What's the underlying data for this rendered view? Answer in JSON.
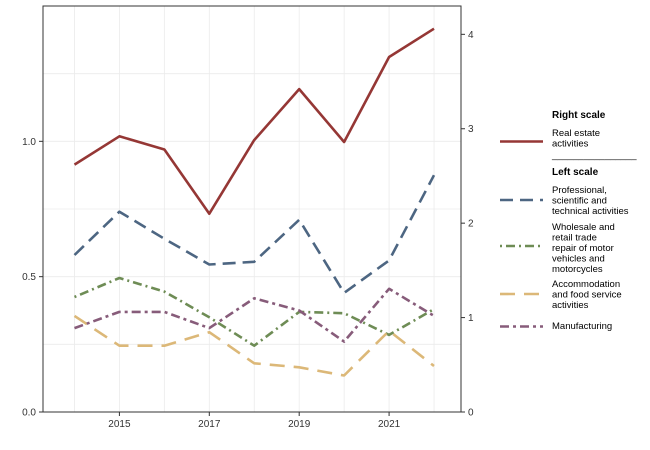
{
  "chart_data": {
    "type": "line",
    "x": [
      2014,
      2015,
      2016,
      2017,
      2018,
      2019,
      2020,
      2021,
      2022
    ],
    "x_ticks": [
      2015,
      2017,
      2019,
      2021
    ],
    "xlim": [
      2013.3,
      2022.6
    ],
    "left_axis": {
      "ylim": [
        0,
        1.5
      ],
      "ticks": [
        0.0,
        0.5,
        1.0
      ],
      "tick_labels": [
        "0.0",
        "0.5",
        "1.0"
      ]
    },
    "right_axis": {
      "ylim": [
        0,
        4.3
      ],
      "ticks": [
        0,
        1,
        2,
        3,
        4
      ],
      "tick_labels": [
        "0",
        "1",
        "2",
        "3",
        "4"
      ]
    },
    "grid": true,
    "legend_position": "right",
    "legend": {
      "right_header": "Right scale",
      "separator": "________________",
      "left_header": "Left scale"
    },
    "series": [
      {
        "name": "Real estate activities",
        "label_lines": [
          "Real estate",
          "activities"
        ],
        "axis": "right",
        "color": "#953735",
        "dash": "solid",
        "values": [
          2.62,
          2.92,
          2.78,
          2.1,
          2.88,
          3.42,
          2.86,
          3.76,
          4.06
        ]
      },
      {
        "name": "Professional, scientific and technical activities",
        "label_lines": [
          "Professional,",
          "scientific and",
          "technical activities"
        ],
        "axis": "left",
        "color": "#4D6682",
        "dash": "long",
        "values": [
          0.58,
          0.74,
          0.64,
          0.545,
          0.555,
          0.71,
          0.44,
          0.56,
          0.875
        ]
      },
      {
        "name": "Wholesale and retail trade repair of motor vehicles and motorcycles",
        "label_lines": [
          "Wholesale and",
          "retail trade",
          "repair of motor",
          "vehicles and",
          "motorcycles"
        ],
        "axis": "left",
        "color": "#6E8C55",
        "dash": "dotdash",
        "values": [
          0.425,
          0.495,
          0.445,
          0.35,
          0.245,
          0.37,
          0.365,
          0.285,
          0.38
        ]
      },
      {
        "name": "Accommodation and food service activities",
        "label_lines": [
          "Accommodation",
          "and food service",
          "activities"
        ],
        "axis": "left",
        "color": "#DCB878",
        "dash": "longshort",
        "values": [
          0.355,
          0.245,
          0.245,
          0.295,
          0.18,
          0.165,
          0.135,
          0.3,
          0.17
        ]
      },
      {
        "name": "Manufacturing",
        "label_lines": [
          "Manufacturing"
        ],
        "axis": "left",
        "color": "#875C7A",
        "dash": "dashdot",
        "values": [
          0.31,
          0.37,
          0.37,
          0.31,
          0.42,
          0.375,
          0.26,
          0.455,
          0.355
        ]
      }
    ]
  }
}
